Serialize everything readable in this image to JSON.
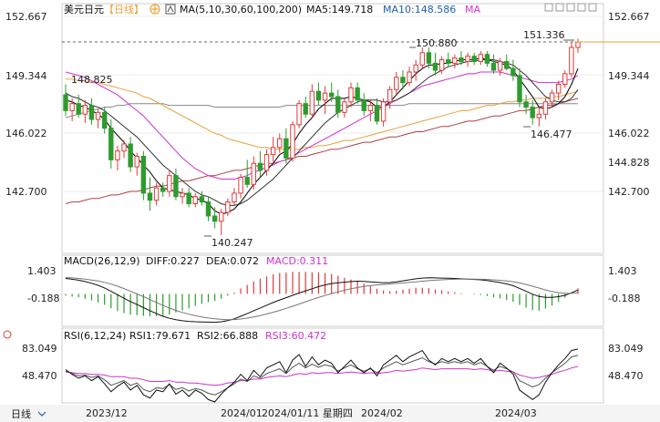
{
  "header": {
    "symbol": "美元日元",
    "period_tag": "【日线】",
    "ma_label": "MA(5,10,30,60,100,200)",
    "ma5_label": "MA5:149.718",
    "ma10_label": "MA10:148.586",
    "ma_tail": "MA",
    "settings_icon": "gear-icon",
    "tools_icon": "pointer-icon"
  },
  "colors": {
    "up": "#e03a3a",
    "down": "#2e9b2e",
    "ma5": "#111111",
    "ma10": "#333333",
    "ma30": "#cc33cc",
    "ma60": "#e8a23a",
    "ma100": "#888888",
    "ma200": "#b04040"
  },
  "price_axis": {
    "ticks": [
      "152.667",
      "149.344",
      "146.022",
      "142.700"
    ],
    "current_price": "144.828",
    "ylim": [
      139.5,
      153.3
    ]
  },
  "annotations": {
    "high_1": "150.880",
    "high_2": "151.336",
    "low_1": "140.247",
    "low_2": "146.477",
    "left_value": "148.825"
  },
  "macd_header": {
    "label": "MACD(26,12,9)",
    "diff": "DIFF:0.227",
    "dea": "DEA:0.072",
    "macd": "MACD:0.311"
  },
  "macd_axis": {
    "ticks": [
      "1.403",
      "-0.188"
    ]
  },
  "rsi_header": {
    "label": "RSI(6,12,24)",
    "rsi1": "RSI1:79.671",
    "rsi2": "RSI2:66.888",
    "rsi3": "RSI3:60.472"
  },
  "rsi_axis": {
    "ticks": [
      "83.049",
      "48.470"
    ]
  },
  "footer": {
    "period_button": "日线",
    "dates": [
      "2023/12",
      "2024/01",
      "2024/01/11 星期四",
      "2024/02",
      "2024/03"
    ]
  },
  "chart_data": {
    "type": "candlestick",
    "candles": [
      [
        148.2,
        148.8,
        147.0,
        147.3
      ],
      [
        147.3,
        148.0,
        146.7,
        147.7
      ],
      [
        147.7,
        148.2,
        146.9,
        147.1
      ],
      [
        147.1,
        147.9,
        146.6,
        147.6
      ],
      [
        147.6,
        148.0,
        146.5,
        146.8
      ],
      [
        146.8,
        147.4,
        146.3,
        147.2
      ],
      [
        147.2,
        147.5,
        146.0,
        146.3
      ],
      [
        146.3,
        146.8,
        144.0,
        144.5
      ],
      [
        144.5,
        145.3,
        143.9,
        145.0
      ],
      [
        145.0,
        145.6,
        144.6,
        145.4
      ],
      [
        145.4,
        145.8,
        143.8,
        144.1
      ],
      [
        144.1,
        144.9,
        143.6,
        144.7
      ],
      [
        144.7,
        145.0,
        142.2,
        142.6
      ],
      [
        142.6,
        143.5,
        141.6,
        142.2
      ],
      [
        142.2,
        143.2,
        141.9,
        142.9
      ],
      [
        142.9,
        143.2,
        142.4,
        142.7
      ],
      [
        142.7,
        143.9,
        142.4,
        143.6
      ],
      [
        143.6,
        144.0,
        142.2,
        142.4
      ],
      [
        142.4,
        142.9,
        142.0,
        142.6
      ],
      [
        142.6,
        142.9,
        141.8,
        142.0
      ],
      [
        142.0,
        142.6,
        141.8,
        142.4
      ],
      [
        142.4,
        142.7,
        141.9,
        142.1
      ],
      [
        142.1,
        142.4,
        141.0,
        141.3
      ],
      [
        141.3,
        141.8,
        140.6,
        141.0
      ],
      [
        141.0,
        141.7,
        140.2,
        141.5
      ],
      [
        141.5,
        142.3,
        141.3,
        142.1
      ],
      [
        142.1,
        142.9,
        141.9,
        142.6
      ],
      [
        142.6,
        143.7,
        142.3,
        143.5
      ],
      [
        143.5,
        144.5,
        142.9,
        143.1
      ],
      [
        143.1,
        144.7,
        142.8,
        144.3
      ],
      [
        144.3,
        145.0,
        143.5,
        143.9
      ],
      [
        143.9,
        145.1,
        143.6,
        144.8
      ],
      [
        144.8,
        145.8,
        144.4,
        145.2
      ],
      [
        145.2,
        146.0,
        144.9,
        145.7
      ],
      [
        145.7,
        146.3,
        144.3,
        144.6
      ],
      [
        144.6,
        146.7,
        144.4,
        146.5
      ],
      [
        146.5,
        147.9,
        146.3,
        147.7
      ],
      [
        147.7,
        148.1,
        146.9,
        147.1
      ],
      [
        147.1,
        148.8,
        146.9,
        148.4
      ],
      [
        148.4,
        148.9,
        147.6,
        147.9
      ],
      [
        147.9,
        148.7,
        147.1,
        148.3
      ],
      [
        148.3,
        148.9,
        147.8,
        148.1
      ],
      [
        148.1,
        148.5,
        146.9,
        147.2
      ],
      [
        147.2,
        148.0,
        146.9,
        147.8
      ],
      [
        147.8,
        148.9,
        147.5,
        148.6
      ],
      [
        148.6,
        148.9,
        147.7,
        147.9
      ],
      [
        147.9,
        148.3,
        147.0,
        147.3
      ],
      [
        147.3,
        147.9,
        146.7,
        147.6
      ],
      [
        147.6,
        148.0,
        146.5,
        146.7
      ],
      [
        146.7,
        148.0,
        146.4,
        147.8
      ],
      [
        147.8,
        148.7,
        147.4,
        148.5
      ],
      [
        148.5,
        149.5,
        148.2,
        149.2
      ],
      [
        149.2,
        149.6,
        148.5,
        148.9
      ],
      [
        148.9,
        149.8,
        148.7,
        149.5
      ],
      [
        149.5,
        150.2,
        149.0,
        149.9
      ],
      [
        149.9,
        150.9,
        149.7,
        150.6
      ],
      [
        150.6,
        150.9,
        149.7,
        150.0
      ],
      [
        150.0,
        150.6,
        149.3,
        149.6
      ],
      [
        149.6,
        150.4,
        149.4,
        150.2
      ],
      [
        150.2,
        150.6,
        149.8,
        150.0
      ],
      [
        150.0,
        150.5,
        149.7,
        150.3
      ],
      [
        150.3,
        150.7,
        149.9,
        150.1
      ],
      [
        150.1,
        150.6,
        149.8,
        150.4
      ],
      [
        150.4,
        150.6,
        149.9,
        150.1
      ],
      [
        150.1,
        150.7,
        149.9,
        150.5
      ],
      [
        150.5,
        150.7,
        149.8,
        150.0
      ],
      [
        150.0,
        150.5,
        149.4,
        149.6
      ],
      [
        149.6,
        150.3,
        149.3,
        150.1
      ],
      [
        150.1,
        150.5,
        149.6,
        149.7
      ],
      [
        149.7,
        150.2,
        149.0,
        149.3
      ],
      [
        149.3,
        149.7,
        147.5,
        147.8
      ],
      [
        147.8,
        148.2,
        147.1,
        147.5
      ],
      [
        147.5,
        147.9,
        146.5,
        146.9
      ],
      [
        146.9,
        147.5,
        146.4,
        147.1
      ],
      [
        147.1,
        148.0,
        146.8,
        147.8
      ],
      [
        147.8,
        148.5,
        147.5,
        148.3
      ],
      [
        148.3,
        149.0,
        147.9,
        148.8
      ],
      [
        148.8,
        149.6,
        148.6,
        149.4
      ],
      [
        149.4,
        151.2,
        149.2,
        150.9
      ],
      [
        150.9,
        151.4,
        150.6,
        151.2
      ]
    ],
    "ma5": [
      147.9,
      147.8,
      147.6,
      147.5,
      147.3,
      147.1,
      146.8,
      146.3,
      145.9,
      145.5,
      145.0,
      144.6,
      144.2,
      143.8,
      143.3,
      142.9,
      142.8,
      142.7,
      142.6,
      142.5,
      142.3,
      142.2,
      142.0,
      141.6,
      141.4,
      141.5,
      141.7,
      142.1,
      142.6,
      143.1,
      143.5,
      143.9,
      144.3,
      144.8,
      145.0,
      145.4,
      146.0,
      146.5,
      146.9,
      147.4,
      147.7,
      148.0,
      148.0,
      148.0,
      148.1,
      148.0,
      147.9,
      147.8,
      147.5,
      147.5,
      147.8,
      148.2,
      148.6,
      149.0,
      149.4,
      149.7,
      149.9,
      149.9,
      150.0,
      150.0,
      150.1,
      150.2,
      150.2,
      150.2,
      150.3,
      150.2,
      150.1,
      150.0,
      149.9,
      149.6,
      149.1,
      148.6,
      148.1,
      147.5,
      147.4,
      147.5,
      147.7,
      148.1,
      148.8,
      149.7
    ],
    "ma10": [
      148.3,
      148.1,
      148.0,
      147.8,
      147.6,
      147.5,
      147.3,
      147.0,
      146.7,
      146.4,
      146.1,
      145.8,
      145.4,
      145.0,
      144.6,
      144.2,
      143.9,
      143.6,
      143.3,
      143.0,
      142.7,
      142.5,
      142.4,
      142.2,
      142.0,
      141.9,
      141.9,
      142.0,
      142.2,
      142.5,
      142.8,
      143.1,
      143.4,
      143.8,
      144.2,
      144.6,
      145.0,
      145.4,
      145.8,
      146.2,
      146.6,
      146.9,
      147.2,
      147.4,
      147.6,
      147.8,
      147.9,
      147.9,
      147.9,
      147.8,
      147.8,
      147.9,
      148.1,
      148.3,
      148.6,
      148.9,
      149.2,
      149.4,
      149.6,
      149.8,
      149.9,
      150.0,
      150.1,
      150.1,
      150.2,
      150.2,
      150.2,
      150.1,
      150.0,
      149.9,
      149.6,
      149.3,
      148.9,
      148.5,
      148.1,
      147.9,
      147.8,
      147.8,
      148.0,
      148.5
    ],
    "ma30": [
      149.5,
      149.4,
      149.3,
      149.2,
      149.0,
      148.8,
      148.6,
      148.4,
      148.2,
      147.9,
      147.6,
      147.3,
      147.0,
      146.6,
      146.2,
      145.8,
      145.4,
      145.0,
      144.6,
      144.3,
      144.0,
      143.8,
      143.6,
      143.5,
      143.4,
      143.4,
      143.4,
      143.5,
      143.6,
      143.8,
      143.9,
      144.1,
      144.2,
      144.4,
      144.5,
      144.7,
      144.9,
      145.1,
      145.3,
      145.5,
      145.7,
      145.9,
      146.1,
      146.3,
      146.5,
      146.7,
      146.9,
      147.1,
      147.3,
      147.5,
      147.7,
      147.9,
      148.1,
      148.3,
      148.5,
      148.7,
      148.8,
      148.9,
      149.0,
      149.1,
      149.2,
      149.3,
      149.4,
      149.4,
      149.5,
      149.5,
      149.5,
      149.5,
      149.4,
      149.3,
      149.2,
      149.1,
      149.0,
      148.9,
      148.9,
      148.9,
      148.9,
      149.0,
      149.1,
      149.3
    ],
    "ma60": [
      149.1,
      149.1,
      149.0,
      149.0,
      148.9,
      148.9,
      148.8,
      148.7,
      148.6,
      148.5,
      148.4,
      148.3,
      148.1,
      148.0,
      147.8,
      147.6,
      147.4,
      147.2,
      147.0,
      146.8,
      146.6,
      146.4,
      146.2,
      146.0,
      145.9,
      145.7,
      145.6,
      145.5,
      145.4,
      145.3,
      145.2,
      145.2,
      145.1,
      145.1,
      145.1,
      145.1,
      145.1,
      145.2,
      145.2,
      145.3,
      145.3,
      145.4,
      145.5,
      145.6,
      145.6,
      145.7,
      145.8,
      145.9,
      146.0,
      146.1,
      146.2,
      146.3,
      146.4,
      146.5,
      146.6,
      146.7,
      146.8,
      146.9,
      147.0,
      147.1,
      147.2,
      147.3,
      147.3,
      147.4,
      147.5,
      147.6,
      147.6,
      147.7,
      147.8,
      147.8,
      147.9,
      147.9,
      148.0,
      148.0,
      148.0,
      148.1,
      148.1,
      148.2,
      148.3,
      148.4
    ],
    "ma100": [
      146.9,
      147.0,
      147.1,
      147.2,
      147.3,
      147.4,
      147.5,
      147.5,
      147.6,
      147.6,
      147.7,
      147.7,
      147.7,
      147.7,
      147.7,
      147.7,
      147.6,
      147.6,
      147.6,
      147.6,
      147.6,
      147.6,
      147.6,
      147.5,
      147.5,
      147.5,
      147.5,
      147.5,
      147.5,
      147.5,
      147.5,
      147.5,
      147.5,
      147.5,
      147.6,
      147.6,
      147.6,
      147.6,
      147.6,
      147.6,
      147.6,
      147.6,
      147.6,
      147.6,
      147.6,
      147.6,
      147.6,
      147.6,
      147.6,
      147.6,
      147.6,
      147.6,
      147.6,
      147.7,
      147.7,
      147.7,
      147.7,
      147.7,
      147.7,
      147.7,
      147.7,
      147.7,
      147.7,
      147.7,
      147.7,
      147.7,
      147.7,
      147.7,
      147.7,
      147.7,
      147.7,
      147.7,
      147.7,
      147.7,
      147.7,
      147.7,
      147.7,
      147.7,
      147.7,
      147.7
    ],
    "ma200": [
      142.0,
      142.1,
      142.1,
      142.2,
      142.3,
      142.3,
      142.4,
      142.5,
      142.5,
      142.6,
      142.7,
      142.7,
      142.8,
      142.9,
      143.0,
      143.0,
      143.1,
      143.2,
      143.3,
      143.3,
      143.4,
      143.5,
      143.6,
      143.6,
      143.7,
      143.8,
      143.9,
      143.9,
      144.0,
      144.1,
      144.2,
      144.3,
      144.3,
      144.4,
      144.5,
      144.6,
      144.7,
      144.7,
      144.8,
      144.9,
      145.0,
      145.1,
      145.1,
      145.2,
      145.3,
      145.4,
      145.5,
      145.5,
      145.6,
      145.7,
      145.8,
      145.8,
      145.9,
      146.0,
      146.1,
      146.1,
      146.2,
      146.3,
      146.4,
      146.4,
      146.5,
      146.6,
      146.7,
      146.7,
      146.8,
      146.9,
      147.0,
      147.0,
      147.1,
      147.2,
      147.3,
      147.3,
      147.4,
      147.5,
      147.6,
      147.6,
      147.7,
      147.8,
      147.9,
      148.0
    ],
    "macd_diff": [
      0.9,
      0.85,
      0.8,
      0.72,
      0.62,
      0.5,
      0.35,
      0.15,
      -0.05,
      -0.25,
      -0.45,
      -0.62,
      -0.8,
      -0.98,
      -1.15,
      -1.3,
      -1.42,
      -1.5,
      -1.56,
      -1.6,
      -1.62,
      -1.63,
      -1.64,
      -1.65,
      -1.62,
      -1.55,
      -1.45,
      -1.3,
      -1.15,
      -0.98,
      -0.82,
      -0.66,
      -0.5,
      -0.35,
      -0.22,
      -0.08,
      0.05,
      0.18,
      0.3,
      0.42,
      0.52,
      0.6,
      0.65,
      0.68,
      0.72,
      0.74,
      0.73,
      0.7,
      0.67,
      0.65,
      0.66,
      0.7,
      0.76,
      0.82,
      0.88,
      0.92,
      0.94,
      0.93,
      0.92,
      0.91,
      0.9,
      0.88,
      0.86,
      0.84,
      0.82,
      0.78,
      0.72,
      0.66,
      0.58,
      0.48,
      0.32,
      0.15,
      -0.02,
      -0.15,
      -0.2,
      -0.2,
      -0.16,
      -0.08,
      0.06,
      0.23
    ],
    "macd_dea": [
      0.95,
      0.93,
      0.9,
      0.86,
      0.81,
      0.75,
      0.67,
      0.57,
      0.45,
      0.31,
      0.16,
      0.0,
      -0.16,
      -0.33,
      -0.5,
      -0.66,
      -0.82,
      -0.96,
      -1.08,
      -1.18,
      -1.27,
      -1.34,
      -1.4,
      -1.45,
      -1.48,
      -1.5,
      -1.49,
      -1.46,
      -1.41,
      -1.34,
      -1.26,
      -1.17,
      -1.07,
      -0.96,
      -0.84,
      -0.72,
      -0.59,
      -0.46,
      -0.33,
      -0.21,
      -0.09,
      0.02,
      0.12,
      0.21,
      0.3,
      0.37,
      0.43,
      0.48,
      0.52,
      0.55,
      0.58,
      0.61,
      0.64,
      0.67,
      0.7,
      0.74,
      0.77,
      0.8,
      0.82,
      0.84,
      0.85,
      0.86,
      0.86,
      0.86,
      0.85,
      0.84,
      0.82,
      0.79,
      0.76,
      0.71,
      0.64,
      0.55,
      0.45,
      0.34,
      0.23,
      0.14,
      0.07,
      0.03,
      0.04,
      0.07
    ],
    "rsi1": [
      56,
      50,
      45,
      48,
      42,
      47,
      38,
      28,
      35,
      40,
      30,
      36,
      24,
      20,
      30,
      28,
      38,
      25,
      30,
      22,
      30,
      26,
      18,
      15,
      25,
      33,
      40,
      50,
      42,
      55,
      47,
      58,
      62,
      66,
      52,
      68,
      75,
      60,
      72,
      62,
      68,
      64,
      52,
      60,
      68,
      58,
      52,
      58,
      48,
      62,
      68,
      74,
      66,
      72,
      76,
      80,
      68,
      62,
      70,
      66,
      70,
      66,
      70,
      64,
      70,
      60,
      52,
      64,
      58,
      50,
      30,
      24,
      18,
      24,
      40,
      52,
      62,
      70,
      80,
      82
    ],
    "rsi2": [
      54,
      51,
      48,
      49,
      46,
      48,
      43,
      36,
      39,
      42,
      36,
      39,
      31,
      28,
      33,
      32,
      37,
      31,
      33,
      29,
      32,
      30,
      26,
      24,
      28,
      33,
      38,
      44,
      41,
      48,
      45,
      51,
      54,
      57,
      51,
      59,
      64,
      58,
      63,
      59,
      62,
      60,
      54,
      58,
      62,
      57,
      54,
      57,
      52,
      58,
      62,
      66,
      62,
      65,
      68,
      71,
      66,
      63,
      66,
      64,
      66,
      64,
      66,
      62,
      65,
      60,
      55,
      60,
      57,
      53,
      42,
      38,
      34,
      37,
      45,
      52,
      58,
      64,
      72,
      74
    ],
    "rsi3": [
      53,
      52,
      51,
      51,
      50,
      50,
      49,
      47,
      47,
      47,
      45,
      45,
      43,
      41,
      41,
      41,
      42,
      40,
      40,
      39,
      39,
      38,
      37,
      36,
      37,
      39,
      40,
      42,
      42,
      44,
      44,
      46,
      47,
      48,
      47,
      49,
      51,
      50,
      52,
      51,
      52,
      52,
      51,
      52,
      53,
      52,
      51,
      52,
      51,
      52,
      53,
      55,
      54,
      55,
      56,
      58,
      57,
      56,
      57,
      57,
      57,
      57,
      57,
      56,
      57,
      56,
      54,
      55,
      54,
      53,
      49,
      47,
      45,
      46,
      48,
      50,
      53,
      55,
      58,
      60
    ]
  }
}
